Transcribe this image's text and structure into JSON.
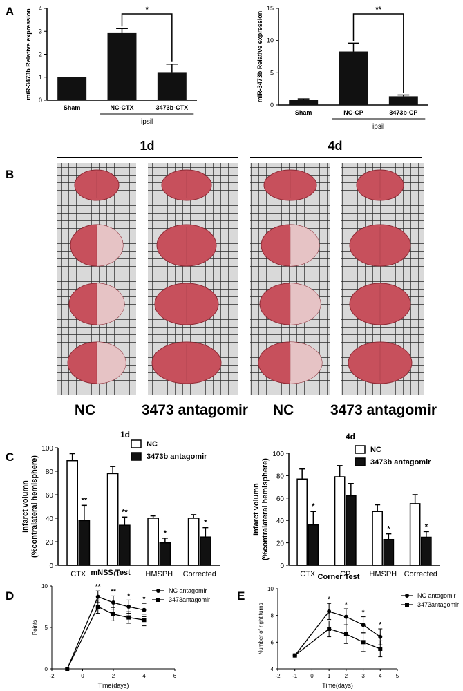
{
  "panel_labels": {
    "a": "A",
    "b": "B",
    "c": "C",
    "d": "D",
    "e": "E"
  },
  "panel_b": {
    "timepoints": [
      "1d",
      "4d"
    ],
    "column_labels": [
      "NC",
      "3473 antagomir",
      "NC",
      "3473 antagomir"
    ]
  },
  "chart_data": [
    {
      "id": "A-left",
      "type": "bar",
      "categories": [
        "Sham",
        "NC-CTX",
        "3473b-CTX"
      ],
      "values": [
        1.0,
        2.92,
        1.22
      ],
      "errors": [
        0,
        0.2,
        0.35
      ],
      "group_label": "ipsil",
      "ylabel": "miR-3473b Relative expression",
      "ylim": [
        0,
        4
      ],
      "yticks": [
        0,
        1,
        2,
        3,
        4
      ],
      "annotations": [
        {
          "from": 1,
          "to": 2,
          "text": "*"
        }
      ],
      "bar_color": "#111111"
    },
    {
      "id": "A-right",
      "type": "bar",
      "categories": [
        "Sham",
        "NC-CP",
        "3473b-CP"
      ],
      "values": [
        0.8,
        8.3,
        1.35
      ],
      "errors": [
        0.15,
        1.3,
        0.2
      ],
      "group_label": "ipsil",
      "ylabel": "miR-3473b Relative expression",
      "ylim": [
        0,
        15
      ],
      "yticks": [
        0,
        5,
        10,
        15
      ],
      "annotations": [
        {
          "from": 1,
          "to": 2,
          "text": "**"
        }
      ],
      "bar_color": "#111111"
    },
    {
      "id": "C-1d",
      "type": "bar",
      "title": "1d",
      "categories": [
        "CTX",
        "CP",
        "HMSPH",
        "Corrected"
      ],
      "ylabel_lines": [
        "Infarct volumn",
        "(%contralateral hemisphere)"
      ],
      "ylim": [
        0,
        100
      ],
      "yticks": [
        0,
        20,
        40,
        60,
        80,
        100
      ],
      "series": [
        {
          "name": "NC",
          "fill": "#ffffff",
          "values": [
            89,
            78,
            40,
            40
          ],
          "errors": [
            6,
            6,
            2,
            3
          ],
          "sig": [
            "",
            "",
            "",
            ""
          ]
        },
        {
          "name": "3473b antagomir",
          "fill": "#111111",
          "values": [
            38,
            34,
            19,
            24
          ],
          "errors": [
            13,
            7,
            4,
            8
          ],
          "sig": [
            "**",
            "**",
            "*",
            "*"
          ]
        }
      ]
    },
    {
      "id": "C-4d",
      "type": "bar",
      "title": "4d",
      "categories": [
        "CTX",
        "CP",
        "HMSPH",
        "Corrected"
      ],
      "ylabel_lines": [
        "Infarct volumn",
        "(%contralateral hemisphere)"
      ],
      "ylim": [
        0,
        100
      ],
      "yticks": [
        0,
        20,
        40,
        60,
        80,
        100
      ],
      "series": [
        {
          "name": "NC",
          "fill": "#ffffff",
          "values": [
            77,
            79,
            48,
            55
          ],
          "errors": [
            9,
            10,
            6,
            8
          ],
          "sig": [
            "",
            "",
            "",
            ""
          ]
        },
        {
          "name": "3473b antagomir",
          "fill": "#111111",
          "values": [
            36,
            62,
            23,
            25
          ],
          "errors": [
            12,
            11,
            5,
            5
          ],
          "sig": [
            "*",
            "",
            "*",
            "*"
          ]
        }
      ]
    },
    {
      "id": "D",
      "type": "line",
      "title": "mNSS Test",
      "x": [
        -1,
        1,
        2,
        3,
        4
      ],
      "xlabel": "Time(days)",
      "ylabel": "Points",
      "xlim": [
        -2,
        6
      ],
      "xticks": [
        -2,
        0,
        2,
        4,
        6
      ],
      "ylim": [
        0,
        10
      ],
      "yticks": [
        0,
        5,
        10
      ],
      "sig": [
        "",
        "**",
        "**",
        "*",
        "*"
      ],
      "series": [
        {
          "name": "NC antagomir",
          "marker": "circle",
          "values": [
            0,
            8.7,
            8.0,
            7.5,
            7.1
          ],
          "errors": [
            0,
            0.7,
            0.8,
            0.8,
            0.8
          ]
        },
        {
          "name": "3473antagomir",
          "marker": "square",
          "values": [
            0,
            7.5,
            6.6,
            6.2,
            5.9
          ],
          "errors": [
            0,
            0.8,
            0.8,
            0.7,
            0.7
          ]
        }
      ]
    },
    {
      "id": "E",
      "type": "line",
      "title": "Corner Test",
      "x": [
        -1,
        1,
        2,
        3,
        4
      ],
      "xlabel": "Time(days)",
      "ylabel": "Number of right turns",
      "xlim": [
        -2,
        5
      ],
      "xticks": [
        -2,
        -1,
        0,
        1,
        2,
        3,
        4,
        5
      ],
      "ylim": [
        4,
        10
      ],
      "yticks": [
        4,
        6,
        8,
        10
      ],
      "sig": [
        "",
        "*",
        "*",
        "*",
        "*"
      ],
      "series": [
        {
          "name": "NC antagomir",
          "marker": "circle",
          "values": [
            5,
            8.3,
            7.9,
            7.3,
            6.4
          ],
          "errors": [
            0,
            0.6,
            0.6,
            0.6,
            0.6
          ]
        },
        {
          "name": "3473antagomir",
          "marker": "square",
          "values": [
            5,
            7.0,
            6.6,
            6.0,
            5.5
          ],
          "errors": [
            0,
            0.6,
            0.7,
            0.7,
            0.6
          ]
        }
      ]
    }
  ]
}
